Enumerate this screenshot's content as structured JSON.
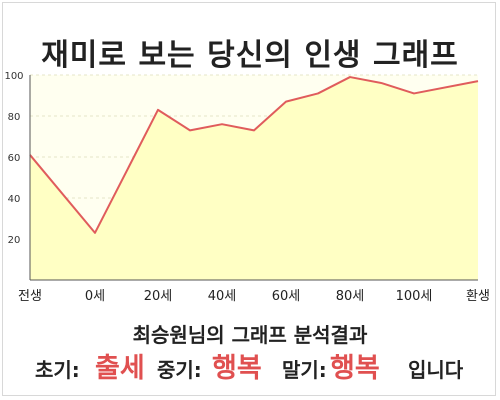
{
  "chart_data": {
    "type": "area",
    "title": "재미로 보는 당신의 인생 그래프",
    "x_tick_labels": [
      "전생",
      "0세",
      "20세",
      "40세",
      "60세",
      "80세",
      "100세",
      "환생"
    ],
    "y_ticks": [
      20,
      40,
      60,
      80,
      100
    ],
    "ylim": [
      0,
      100
    ],
    "grid": true,
    "series": [
      {
        "values": [
          61,
          23,
          83,
          73,
          76,
          73,
          87,
          91,
          99,
          96,
          91,
          97
        ]
      }
    ],
    "colors": {
      "line": "#e05c5c",
      "fill": "#ffffc4",
      "plot_bg": "#fffff0"
    }
  },
  "summary": {
    "title": "최승원님의 그래프 분석결과",
    "early_label": "초기:",
    "early_value": "출세",
    "mid_label": "중기:",
    "mid_value": "행복",
    "late_label": "말기:",
    "late_value": "행복",
    "suffix": "입니다"
  }
}
